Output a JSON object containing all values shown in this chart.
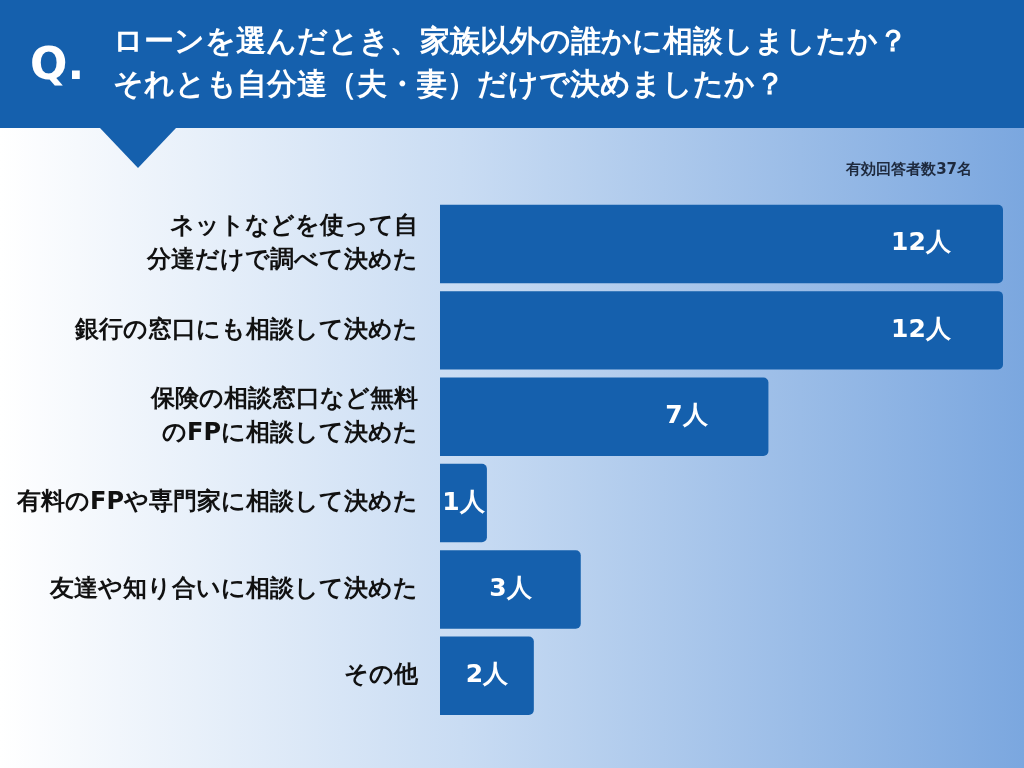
{
  "chart_data": {
    "type": "bar",
    "orientation": "horizontal",
    "title": "ローンを選んだとき、家族以外の誰かに相談しましたか？それとも自分達（夫・妻）だけで決めましたか？",
    "annotations": [
      "Q.",
      "有効回答者数37名"
    ],
    "categories": [
      "ネットなどを使って自分達だけで調べて決めた",
      "銀行の窓口にも相談して決めた",
      "保険の相談窓口など無料のFPに相談して決めた",
      "有料のFPや専門家に相談して決めた",
      "友達や知り合いに相談して決めた",
      "その他"
    ],
    "values": [
      12,
      12,
      7,
      1,
      3,
      2
    ],
    "value_labels": [
      "12人",
      "12人",
      "7人",
      "1人",
      "3人",
      "2人"
    ],
    "color": "#1560ad",
    "xlim": [
      0,
      12
    ],
    "tick_labels": "y",
    "legend": false
  }
}
